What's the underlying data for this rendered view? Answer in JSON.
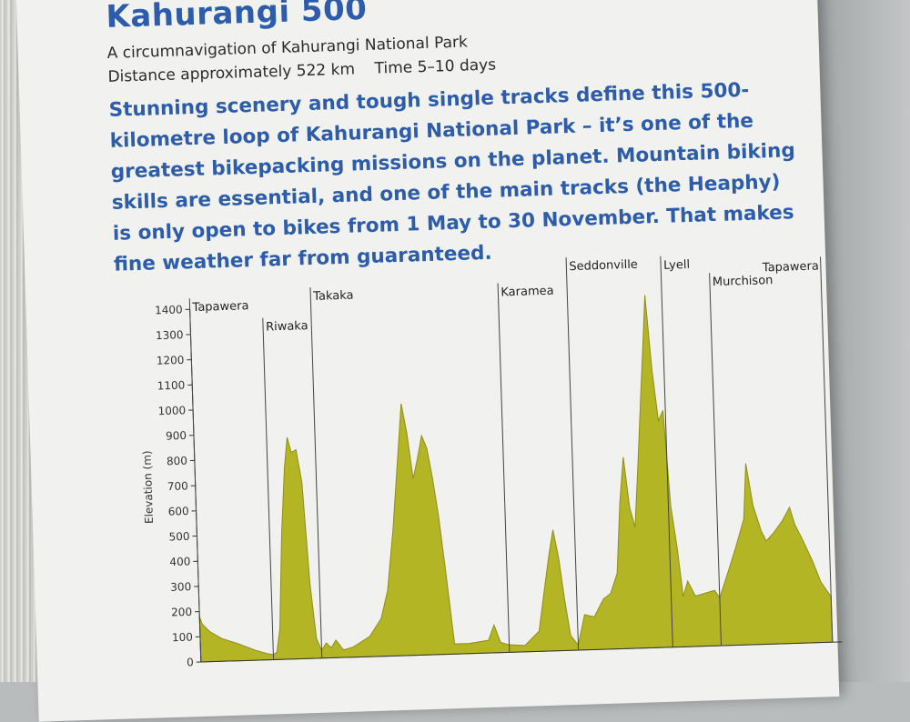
{
  "title": "Kahurangi 500",
  "subtitle": "A circumnavigation of Kahurangi National Park",
  "meta": {
    "distance": "Distance approximately 522 km",
    "time": "Time 5–10 days"
  },
  "lede": "Stunning scenery and tough single tracks define this 500-kilometre loop of Kahurangi National Park – it’s one of the greatest bikepacking missions on the planet. Mountain biking skills are essential, and one of the main tracks (the Heaphy) is only open to bikes from 1 May to 30 November. That makes fine weather far from guaranteed.",
  "colors": {
    "title_blue": "#2c5cab",
    "fill_olive": "#b4b525",
    "fill_edge": "#8d8e18",
    "page": "#f1f2ef"
  },
  "chart_data": {
    "type": "area",
    "ylabel": "Elevation (m)",
    "xlabel": "",
    "ylim": [
      0,
      1400
    ],
    "y_ticks": [
      0,
      100,
      200,
      300,
      400,
      500,
      600,
      700,
      800,
      900,
      1000,
      1100,
      1200,
      1300,
      1400
    ],
    "xlim": [
      0,
      530
    ],
    "towns": [
      {
        "name": "Tapawera",
        "km": 0
      },
      {
        "name": "Riwaka",
        "km": 60
      },
      {
        "name": "Takaka",
        "km": 100
      },
      {
        "name": "Karamea",
        "km": 255
      },
      {
        "name": "Seddonville",
        "km": 312
      },
      {
        "name": "Lyell",
        "km": 390
      },
      {
        "name": "Murchison",
        "km": 430
      },
      {
        "name": "Tapawera",
        "km": 522
      }
    ],
    "profile": [
      [
        0,
        180
      ],
      [
        2,
        150
      ],
      [
        8,
        120
      ],
      [
        18,
        90
      ],
      [
        30,
        70
      ],
      [
        45,
        40
      ],
      [
        55,
        25
      ],
      [
        60,
        20
      ],
      [
        63,
        30
      ],
      [
        66,
        120
      ],
      [
        70,
        500
      ],
      [
        74,
        760
      ],
      [
        77,
        880
      ],
      [
        80,
        820
      ],
      [
        84,
        830
      ],
      [
        88,
        700
      ],
      [
        92,
        300
      ],
      [
        96,
        80
      ],
      [
        100,
        30
      ],
      [
        104,
        60
      ],
      [
        108,
        40
      ],
      [
        112,
        70
      ],
      [
        118,
        30
      ],
      [
        126,
        40
      ],
      [
        140,
        80
      ],
      [
        150,
        150
      ],
      [
        156,
        260
      ],
      [
        162,
        500
      ],
      [
        168,
        800
      ],
      [
        172,
        1000
      ],
      [
        176,
        880
      ],
      [
        180,
        700
      ],
      [
        184,
        780
      ],
      [
        188,
        870
      ],
      [
        192,
        820
      ],
      [
        196,
        700
      ],
      [
        200,
        550
      ],
      [
        204,
        350
      ],
      [
        210,
        40
      ],
      [
        222,
        40
      ],
      [
        238,
        50
      ],
      [
        243,
        110
      ],
      [
        248,
        40
      ],
      [
        255,
        30
      ],
      [
        268,
        25
      ],
      [
        280,
        80
      ],
      [
        286,
        260
      ],
      [
        290,
        380
      ],
      [
        294,
        480
      ],
      [
        298,
        370
      ],
      [
        302,
        200
      ],
      [
        306,
        60
      ],
      [
        312,
        20
      ],
      [
        318,
        140
      ],
      [
        326,
        130
      ],
      [
        334,
        200
      ],
      [
        340,
        220
      ],
      [
        346,
        300
      ],
      [
        350,
        580
      ],
      [
        354,
        760
      ],
      [
        358,
        560
      ],
      [
        362,
        480
      ],
      [
        366,
        730
      ],
      [
        370,
        1000
      ],
      [
        374,
        1260
      ],
      [
        376,
        1400
      ],
      [
        380,
        1100
      ],
      [
        384,
        900
      ],
      [
        388,
        940
      ],
      [
        392,
        560
      ],
      [
        396,
        400
      ],
      [
        400,
        200
      ],
      [
        404,
        260
      ],
      [
        410,
        200
      ],
      [
        418,
        210
      ],
      [
        426,
        220
      ],
      [
        430,
        190
      ],
      [
        436,
        270
      ],
      [
        444,
        380
      ],
      [
        452,
        500
      ],
      [
        455,
        720
      ],
      [
        460,
        550
      ],
      [
        466,
        450
      ],
      [
        470,
        410
      ],
      [
        476,
        440
      ],
      [
        484,
        490
      ],
      [
        490,
        540
      ],
      [
        494,
        470
      ],
      [
        500,
        410
      ],
      [
        508,
        320
      ],
      [
        514,
        240
      ],
      [
        522,
        180
      ]
    ],
    "grid": false
  }
}
